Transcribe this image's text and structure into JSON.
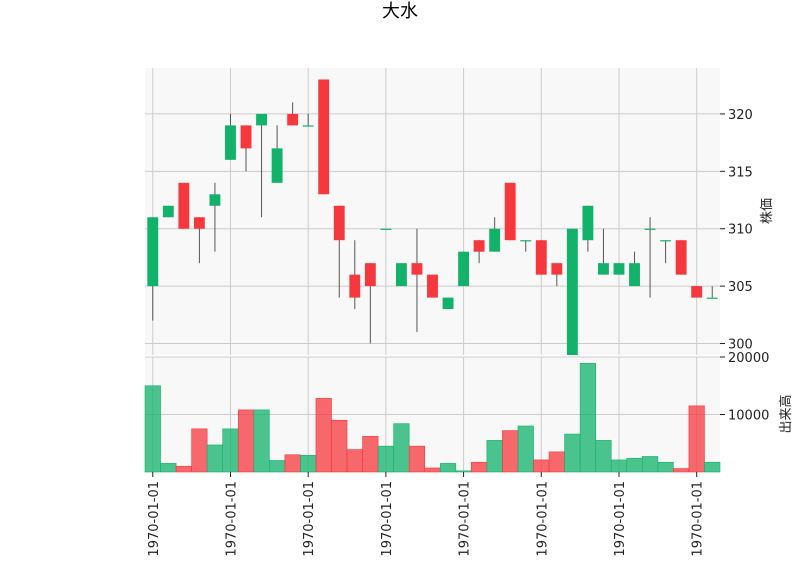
{
  "chart_data": {
    "type": "candlestick",
    "title": "大水",
    "x_tick_labels": [
      "1970-01-01",
      "1970-01-01",
      "1970-01-01",
      "1970-01-01",
      "1970-01-01",
      "1970-01-01",
      "1970-01-01",
      "1970-01-01"
    ],
    "price_axis": {
      "label": "株価",
      "ticks": [
        300,
        305,
        310,
        315,
        320
      ],
      "range": [
        299,
        324
      ]
    },
    "volume_axis": {
      "label": "出来高",
      "ticks": [
        10000,
        20000
      ],
      "tick_labels": [
        "10000",
        "20000"
      ],
      "range": [
        0,
        20000
      ]
    },
    "grid": true,
    "colors": {
      "up": "#12b26b",
      "down": "#f5383e",
      "wick": "#555555",
      "plot_bg": "#f8f8f8",
      "grid": "#cccccc"
    },
    "candles": [
      {
        "open": 305,
        "high": 311,
        "low": 302,
        "close": 311,
        "volume": 15000
      },
      {
        "open": 311,
        "high": 312,
        "low": 311,
        "close": 312,
        "volume": 1500
      },
      {
        "open": 314,
        "high": 314,
        "low": 310,
        "close": 310,
        "volume": 1000
      },
      {
        "open": 311,
        "high": 311,
        "low": 307,
        "close": 310,
        "volume": 7500
      },
      {
        "open": 312,
        "high": 314,
        "low": 308,
        "close": 313,
        "volume": 4700
      },
      {
        "open": 316,
        "high": 320,
        "low": 316,
        "close": 319,
        "volume": 7500
      },
      {
        "open": 319,
        "high": 319,
        "low": 315,
        "close": 317,
        "volume": 10800
      },
      {
        "open": 319,
        "high": 320,
        "low": 311,
        "close": 320,
        "volume": 10800
      },
      {
        "open": 314,
        "high": 319,
        "low": 314,
        "close": 317,
        "volume": 2000
      },
      {
        "open": 320,
        "high": 321,
        "low": 319,
        "close": 319,
        "volume": 3000
      },
      {
        "open": 319,
        "high": 320,
        "low": 319,
        "close": 319,
        "volume": 2900
      },
      {
        "open": 323,
        "high": 323,
        "low": 313,
        "close": 313,
        "volume": 12800
      },
      {
        "open": 312,
        "high": 312,
        "low": 304,
        "close": 309,
        "volume": 9000
      },
      {
        "open": 306,
        "high": 309,
        "low": 303,
        "close": 304,
        "volume": 3900
      },
      {
        "open": 307,
        "high": 307,
        "low": 300,
        "close": 305,
        "volume": 6200
      },
      {
        "open": 310,
        "high": 310,
        "low": 310,
        "close": 310,
        "volume": 4500
      },
      {
        "open": 305,
        "high": 307,
        "low": 305,
        "close": 307,
        "volume": 8400
      },
      {
        "open": 307,
        "high": 310,
        "low": 301,
        "close": 306,
        "volume": 4500
      },
      {
        "open": 306,
        "high": 306,
        "low": 304,
        "close": 304,
        "volume": 700
      },
      {
        "open": 303,
        "high": 304,
        "low": 303,
        "close": 304,
        "volume": 1500
      },
      {
        "open": 305,
        "high": 308,
        "low": 305,
        "close": 308,
        "volume": 200
      },
      {
        "open": 309,
        "high": 309,
        "low": 307,
        "close": 308,
        "volume": 1700
      },
      {
        "open": 308,
        "high": 311,
        "low": 308,
        "close": 310,
        "volume": 5500
      },
      {
        "open": 314,
        "high": 314,
        "low": 309,
        "close": 309,
        "volume": 7200
      },
      {
        "open": 309,
        "high": 309,
        "low": 308,
        "close": 309,
        "volume": 8000
      },
      {
        "open": 309,
        "high": 309,
        "low": 306,
        "close": 306,
        "volume": 2100
      },
      {
        "open": 307,
        "high": 307,
        "low": 305,
        "close": 306,
        "volume": 3500
      },
      {
        "open": 299,
        "high": 310,
        "low": 299,
        "close": 310,
        "volume": 6600
      },
      {
        "open": 309,
        "high": 312,
        "low": 308,
        "close": 312,
        "volume": 18900
      },
      {
        "open": 306,
        "high": 310,
        "low": 306,
        "close": 307,
        "volume": 5500
      },
      {
        "open": 306,
        "high": 307,
        "low": 306,
        "close": 307,
        "volume": 2100
      },
      {
        "open": 305,
        "high": 308,
        "low": 305,
        "close": 307,
        "volume": 2400
      },
      {
        "open": 310,
        "high": 311,
        "low": 304,
        "close": 310,
        "volume": 2700
      },
      {
        "open": 309,
        "high": 309,
        "low": 307,
        "close": 309,
        "volume": 1700
      },
      {
        "open": 309,
        "high": 309,
        "low": 306,
        "close": 306,
        "volume": 600
      },
      {
        "open": 305,
        "high": 305,
        "low": 304,
        "close": 304,
        "volume": 11500
      },
      {
        "open": 304,
        "high": 305,
        "low": 304,
        "close": 304,
        "volume": 1700
      }
    ]
  }
}
